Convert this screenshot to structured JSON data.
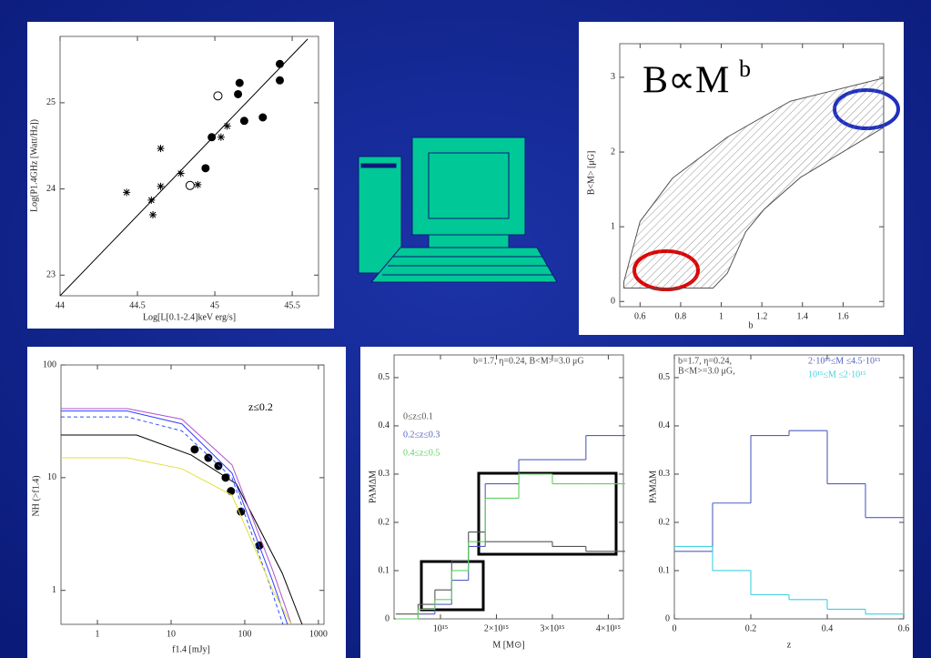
{
  "chart_data": [
    {
      "type": "scatter",
      "xlabel": "Log[L[0.1-2.4]keV erg/s]",
      "ylabel": "Log(P1.4GHz [Watt/Hz])",
      "xlim": [
        44,
        45.67
      ],
      "ylim": [
        22.76,
        25.77
      ],
      "xticks": [
        44,
        44.5,
        45,
        45.5
      ],
      "yticks": [
        23,
        24,
        25
      ],
      "series": [
        {
          "marker": "asterisk",
          "color": "#000000",
          "x": [
            44.43,
            44.59,
            44.6,
            44.65,
            44.65,
            44.78,
            44.89,
            45.04,
            45.08
          ],
          "values": [
            23.96,
            23.87,
            23.7,
            24.47,
            24.03,
            24.18,
            24.05,
            24.6,
            24.73
          ]
        },
        {
          "marker": "open-circle",
          "color": "#000000",
          "x": [
            45.02,
            44.84
          ],
          "values": [
            25.08,
            24.04
          ]
        },
        {
          "marker": "filled-circle",
          "color": "#000000",
          "x": [
            45.42,
            45.42,
            45.16,
            45.15,
            44.98,
            45.19,
            45.31,
            44.94
          ],
          "values": [
            25.45,
            25.26,
            25.23,
            25.1,
            24.6,
            24.79,
            24.83,
            24.24
          ]
        },
        {
          "color": "#000000",
          "x": [
            44,
            45.6
          ],
          "values": [
            22.76,
            25.74
          ]
        }
      ]
    },
    {
      "type": "area",
      "title": "B∝M",
      "title_superscript": "b",
      "xlabel": "b",
      "ylabel": "B<M> [μG]",
      "xlim": [
        0.5,
        1.8
      ],
      "ylim": [
        -0.07,
        3.45
      ],
      "xticks": [
        0.6,
        0.8,
        1,
        1.2,
        1.4,
        1.6
      ],
      "yticks": [
        0,
        1,
        2,
        3
      ],
      "color": "#555555",
      "series": [
        {
          "x": [
            0.52,
            0.6,
            0.76,
            1.03,
            1.34,
            1.8
          ],
          "values": [
            0.26,
            1.07,
            1.65,
            2.2,
            2.68,
            2.99
          ]
        },
        {
          "x": [
            0.52,
            0.96,
            1.03,
            1.12,
            1.21,
            1.39,
            1.61,
            1.8
          ],
          "values": [
            0.18,
            0.18,
            0.38,
            0.93,
            1.23,
            1.66,
            2.02,
            2.33
          ]
        }
      ]
    },
    {
      "type": "line",
      "xscale": "log",
      "yscale": "log",
      "xlabel": "f1.4 [mJy]",
      "ylabel": "NH (>f1.4)",
      "annotation": "z≤0.2",
      "xlim": [
        0.32,
        1190
      ],
      "ylim": [
        0.5,
        100
      ],
      "xticks": [
        1,
        10,
        100,
        1000
      ],
      "yticks": [
        1,
        10,
        100
      ],
      "series": [
        {
          "marker": "filled-circle",
          "color": "#000000",
          "x": [
            20.9,
            32,
            43.8,
            55,
            65,
            89,
            158
          ],
          "values": [
            17.8,
            15,
            12.7,
            10,
            7.6,
            5,
            2.5
          ]
        },
        {
          "color": "#000000",
          "x": [
            0.32,
            3.4,
            18.7,
            77,
            323,
            600
          ],
          "values": [
            23.9,
            23.9,
            15.9,
            8.8,
            1.42,
            0.5
          ]
        },
        {
          "color": "#b050d0",
          "x": [
            0.32,
            2.55,
            14,
            67,
            240,
            430
          ],
          "values": [
            41,
            41,
            33,
            13,
            1.5,
            0.5
          ]
        },
        {
          "color": "#3040ff",
          "x": [
            0.32,
            2.55,
            14,
            67,
            240,
            380
          ],
          "values": [
            39,
            39,
            30,
            11,
            1.2,
            0.5
          ]
        },
        {
          "color": "#3050ff",
          "dash": true,
          "x": [
            0.32,
            2.55,
            14,
            67,
            210,
            330
          ],
          "values": [
            34.6,
            34.6,
            26,
            10,
            1.2,
            0.5
          ]
        },
        {
          "color": "#e0e040",
          "x": [
            0.32,
            2.55,
            14,
            67,
            240,
            430
          ],
          "values": [
            15,
            15,
            12,
            7,
            1.0,
            0.5
          ]
        }
      ]
    },
    {
      "type": "histogram",
      "title": "b=1.7, η=0.24, B<M>=3.0 μG",
      "xlabel": "M [M⊙]",
      "ylabel": "PAMΔM",
      "xlim": [
        170000000000000.0,
        4270000000000000.0
      ],
      "ylim": [
        0,
        0.547
      ],
      "xticks": [
        {
          "value": 1000000000000000.0,
          "label": "10¹⁵"
        },
        {
          "value": 2000000000000000.0,
          "label": "2×10¹⁵"
        },
        {
          "value": 3000000000000000.0,
          "label": "3×10¹⁵"
        },
        {
          "value": 4000000000000000.0,
          "label": "4×10¹⁵"
        }
      ],
      "yticks": [
        0,
        0.1,
        0.2,
        0.3,
        0.4,
        0.5
      ],
      "bins": [
        200000000000000.0,
        600000000000000.0,
        900000000000000.0,
        1200000000000000.0,
        1500000000000000.0,
        1800000000000000.0,
        2400000000000000.0,
        3000000000000000.0,
        3600000000000000.0,
        4300000000000000.0
      ],
      "series": [
        {
          "name": "0≤z≤0.1",
          "color": "#555555",
          "values": [
            0.01,
            0.03,
            0.06,
            0.12,
            0.18,
            0.16,
            0.16,
            0.15,
            0.14
          ]
        },
        {
          "name": "0.2≤z≤0.3",
          "color": "#5060c0",
          "values": [
            0,
            0.01,
            0.03,
            0.08,
            0.15,
            0.28,
            0.33,
            0.33,
            0.38
          ]
        },
        {
          "name": "0.4≤z≤0.5",
          "color": "#60d060",
          "values": [
            0,
            0.02,
            0.04,
            0.1,
            0.16,
            0.25,
            0.3,
            0.28,
            0.28
          ]
        }
      ]
    },
    {
      "type": "histogram",
      "title_lines": [
        "b=1.7, η=0.24,",
        "B<M>=3.0 μG,"
      ],
      "xlabel": "z",
      "ylabel": "PAMΔM",
      "xlim": [
        0,
        0.6
      ],
      "ylim": [
        0,
        0.547
      ],
      "xticks": [
        0,
        0.2,
        0.4,
        0.6
      ],
      "yticks": [
        0,
        0.1,
        0.2,
        0.3,
        0.4,
        0.5
      ],
      "bins": [
        0,
        0.1,
        0.2,
        0.3,
        0.4,
        0.5,
        0.6
      ],
      "series": [
        {
          "name": "2·10¹⁵≤M ≤4.5·10¹⁵",
          "color": "#5060c0",
          "values": [
            0.14,
            0.24,
            0.38,
            0.39,
            0.28,
            0.21
          ]
        },
        {
          "name": "10¹⁵≤M ≤2·10¹⁵",
          "color": "#40d0e0",
          "values": [
            0.15,
            0.1,
            0.05,
            0.04,
            0.02,
            0.01
          ]
        }
      ]
    }
  ]
}
